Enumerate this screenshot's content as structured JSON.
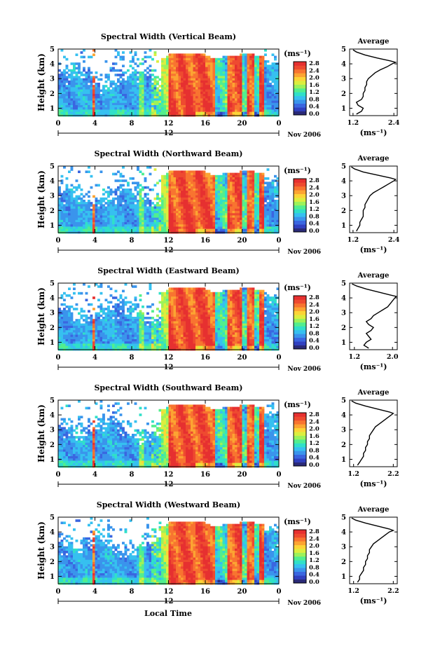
{
  "figure": {
    "shared_xlabel": "Local Time",
    "date_label": "Nov 2006",
    "day_label": "12",
    "xticks": [
      "0",
      "4",
      "8",
      "12",
      "16",
      "20",
      "0"
    ],
    "yticks": [
      "1",
      "2",
      "3",
      "4",
      "5"
    ],
    "ylabel": "Height (km)",
    "unit_label": "(ms⁻¹)",
    "avg_title": "Average",
    "avg_xlabel": "(ms⁻¹)",
    "colorbar_colors": [
      "#2a2a78",
      "#3040c0",
      "#3a66e0",
      "#3a94ec",
      "#36c0f0",
      "#30e0c8",
      "#52ee8e",
      "#9cf25a",
      "#dcee3e",
      "#fcd436",
      "#fca432",
      "#f87430",
      "#ee4a30",
      "#e63030"
    ]
  },
  "chart_data": [
    {
      "type": "heatmap",
      "title": "Spectral Width (Vertical Beam)",
      "xlim": [
        0,
        24
      ],
      "ylim": [
        0.5,
        5
      ],
      "colorbar_ticks": [
        "0.0",
        "0.4",
        "0.8",
        "1.2",
        "1.6",
        "2.0",
        "2.4",
        "2.8"
      ],
      "colorbar_range": [
        0,
        2.8
      ],
      "average": {
        "xticks": [
          "1.2",
          "2.4"
        ],
        "xlim": [
          1.1,
          2.5
        ],
        "height": [
          0.6,
          0.8,
          1.0,
          1.2,
          1.4,
          1.6,
          1.8,
          2.0,
          2.2,
          2.4,
          2.6,
          2.8,
          3.0,
          3.2,
          3.4,
          3.6,
          3.8,
          4.0,
          4.1,
          4.2,
          4.4,
          4.6,
          4.8,
          4.95
        ],
        "value": [
          1.3,
          1.45,
          1.5,
          1.35,
          1.3,
          1.45,
          1.5,
          1.5,
          1.55,
          1.55,
          1.6,
          1.6,
          1.65,
          1.75,
          1.85,
          2.0,
          2.2,
          2.35,
          2.45,
          2.3,
          1.9,
          1.55,
          1.3,
          1.2
        ]
      }
    },
    {
      "type": "heatmap",
      "title": "Spectral Width (Northward Beam)",
      "xlim": [
        0,
        24
      ],
      "ylim": [
        0.5,
        5
      ],
      "colorbar_ticks": [
        "0.0",
        "0.4",
        "0.8",
        "1.2",
        "1.6",
        "2.0",
        "2.4",
        "2.8"
      ],
      "colorbar_range": [
        0,
        2.8
      ],
      "average": {
        "xticks": [
          "1.2",
          "2.4"
        ],
        "xlim": [
          1.1,
          2.5
        ],
        "height": [
          0.6,
          0.8,
          1.0,
          1.2,
          1.4,
          1.6,
          1.8,
          2.0,
          2.2,
          2.4,
          2.6,
          2.8,
          3.0,
          3.2,
          3.4,
          3.6,
          3.8,
          4.0,
          4.1,
          4.2,
          4.4,
          4.6,
          4.8,
          4.95
        ],
        "value": [
          1.3,
          1.35,
          1.4,
          1.4,
          1.45,
          1.5,
          1.5,
          1.5,
          1.55,
          1.55,
          1.6,
          1.65,
          1.7,
          1.8,
          1.95,
          2.1,
          2.25,
          2.4,
          2.45,
          2.3,
          1.9,
          1.5,
          1.25,
          1.15
        ]
      }
    },
    {
      "type": "heatmap",
      "title": "Spectral Width (Eastward Beam)",
      "xlim": [
        0,
        24
      ],
      "ylim": [
        0.5,
        5
      ],
      "colorbar_ticks": [
        "0.0",
        "0.4",
        "0.8",
        "1.2",
        "1.6",
        "2.0",
        "2.4",
        "2.8"
      ],
      "colorbar_range": [
        0,
        2.8
      ],
      "average": {
        "xticks": [
          "1.2",
          "2.0"
        ],
        "xlim": [
          1.1,
          2.1
        ],
        "height": [
          0.6,
          0.8,
          1.0,
          1.2,
          1.4,
          1.6,
          1.8,
          2.0,
          2.2,
          2.4,
          2.6,
          2.8,
          3.0,
          3.2,
          3.4,
          3.6,
          3.8,
          4.0,
          4.1,
          4.2,
          4.4,
          4.6,
          4.8,
          4.95
        ],
        "value": [
          1.5,
          1.4,
          1.45,
          1.55,
          1.5,
          1.45,
          1.55,
          1.6,
          1.5,
          1.45,
          1.55,
          1.6,
          1.7,
          1.8,
          1.9,
          1.95,
          2.0,
          2.05,
          2.08,
          1.95,
          1.7,
          1.45,
          1.25,
          1.15
        ]
      }
    },
    {
      "type": "heatmap",
      "title": "Spectral Width (Southward Beam)",
      "xlim": [
        0,
        24
      ],
      "ylim": [
        0.5,
        5
      ],
      "colorbar_ticks": [
        "0.0",
        "0.4",
        "0.8",
        "1.2",
        "1.6",
        "2.0",
        "2.4",
        "2.8"
      ],
      "colorbar_range": [
        0,
        2.8
      ],
      "average": {
        "xticks": [
          "1.2",
          "2.2"
        ],
        "xlim": [
          1.1,
          2.3
        ],
        "height": [
          0.6,
          0.8,
          1.0,
          1.2,
          1.4,
          1.6,
          1.8,
          2.0,
          2.2,
          2.4,
          2.6,
          2.8,
          3.0,
          3.2,
          3.4,
          3.6,
          3.8,
          4.0,
          4.1,
          4.2,
          4.4,
          4.6,
          4.8,
          4.95
        ],
        "value": [
          1.3,
          1.35,
          1.4,
          1.45,
          1.45,
          1.5,
          1.5,
          1.55,
          1.55,
          1.6,
          1.6,
          1.65,
          1.7,
          1.75,
          1.85,
          1.95,
          2.05,
          2.15,
          2.2,
          2.1,
          1.8,
          1.5,
          1.25,
          1.15
        ]
      }
    },
    {
      "type": "heatmap",
      "title": "Spectral Width (Westward Beam)",
      "xlim": [
        0,
        24
      ],
      "ylim": [
        0.5,
        5
      ],
      "colorbar_ticks": [
        "0.0",
        "0.4",
        "0.8",
        "1.2",
        "1.6",
        "2.0",
        "2.4",
        "2.8"
      ],
      "colorbar_range": [
        0,
        2.8
      ],
      "average": {
        "xticks": [
          "1.2",
          "2.2"
        ],
        "xlim": [
          1.1,
          2.3
        ],
        "height": [
          0.6,
          0.8,
          1.0,
          1.2,
          1.4,
          1.6,
          1.8,
          2.0,
          2.2,
          2.4,
          2.6,
          2.8,
          3.0,
          3.2,
          3.4,
          3.6,
          3.8,
          4.0,
          4.1,
          4.2,
          4.4,
          4.6,
          4.8,
          4.95
        ],
        "value": [
          1.3,
          1.35,
          1.35,
          1.4,
          1.45,
          1.45,
          1.5,
          1.5,
          1.55,
          1.55,
          1.6,
          1.6,
          1.65,
          1.7,
          1.8,
          1.9,
          2.0,
          2.1,
          2.2,
          2.1,
          1.8,
          1.5,
          1.25,
          1.15
        ]
      }
    }
  ]
}
